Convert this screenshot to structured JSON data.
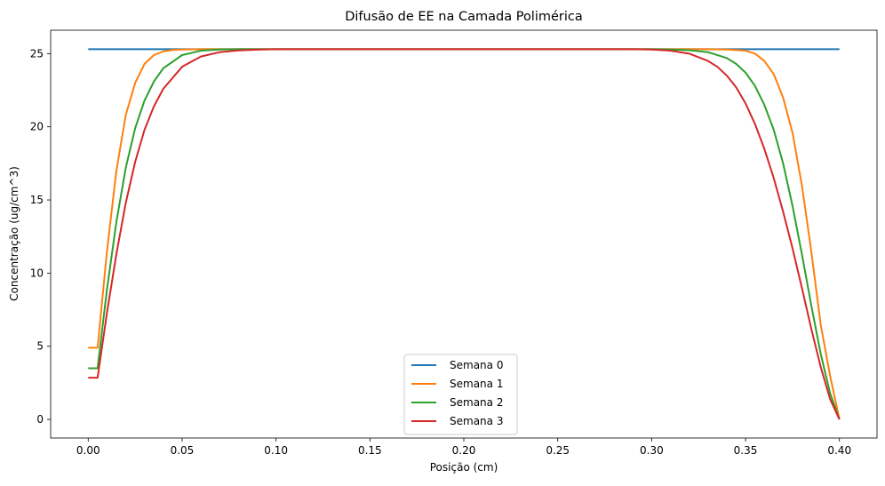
{
  "chart_data": {
    "type": "line",
    "title": "Difusão de EE na Camada Polimérica",
    "xlabel": "Posição (cm)",
    "ylabel": "Concentração (ug/cm^3)",
    "xlim": [
      -0.02,
      0.42
    ],
    "ylim": [
      -1.27,
      26.6
    ],
    "xticks": [
      0.0,
      0.05,
      0.1,
      0.15,
      0.2,
      0.25,
      0.3,
      0.35,
      0.4
    ],
    "xtick_labels": [
      "0.00",
      "0.05",
      "0.10",
      "0.15",
      "0.20",
      "0.25",
      "0.30",
      "0.35",
      "0.40"
    ],
    "yticks": [
      0,
      5,
      10,
      15,
      20,
      25
    ],
    "ytick_labels": [
      "0",
      "5",
      "10",
      "15",
      "20",
      "25"
    ],
    "grid": false,
    "legend_position": "bottom-center",
    "plateau": 25.3,
    "series": [
      {
        "name": "Semana 0",
        "color": "#1f77b4",
        "x": [
          0.0,
          0.4
        ],
        "y": [
          25.3,
          25.3
        ]
      },
      {
        "name": "Semana 1",
        "color": "#ff7f0e",
        "x": [
          0.0,
          0.004,
          0.005,
          0.01,
          0.015,
          0.02,
          0.025,
          0.03,
          0.035,
          0.04,
          0.045,
          0.05,
          0.06,
          0.07,
          0.08,
          0.1,
          0.2,
          0.3,
          0.32,
          0.33,
          0.34,
          0.35,
          0.355,
          0.36,
          0.365,
          0.37,
          0.375,
          0.38,
          0.385,
          0.39,
          0.395,
          0.4
        ],
        "y": [
          4.9,
          4.9,
          4.9,
          11.5,
          17.0,
          20.8,
          23.0,
          24.3,
          24.9,
          25.15,
          25.25,
          25.28,
          25.3,
          25.3,
          25.3,
          25.3,
          25.3,
          25.3,
          25.3,
          25.3,
          25.28,
          25.2,
          25.0,
          24.5,
          23.6,
          22.0,
          19.6,
          16.0,
          11.5,
          6.5,
          3.0,
          0.0
        ]
      },
      {
        "name": "Semana 2",
        "color": "#2ca02c",
        "x": [
          0.0,
          0.004,
          0.005,
          0.01,
          0.015,
          0.02,
          0.025,
          0.03,
          0.035,
          0.04,
          0.05,
          0.06,
          0.07,
          0.08,
          0.09,
          0.1,
          0.2,
          0.3,
          0.31,
          0.32,
          0.33,
          0.34,
          0.345,
          0.35,
          0.355,
          0.36,
          0.365,
          0.37,
          0.375,
          0.38,
          0.385,
          0.39,
          0.395,
          0.4
        ],
        "y": [
          3.5,
          3.5,
          3.5,
          8.9,
          13.5,
          17.2,
          19.9,
          21.8,
          23.1,
          24.0,
          24.9,
          25.2,
          25.28,
          25.3,
          25.3,
          25.3,
          25.3,
          25.3,
          25.28,
          25.23,
          25.1,
          24.7,
          24.3,
          23.7,
          22.8,
          21.5,
          19.8,
          17.5,
          14.6,
          11.3,
          7.8,
          4.5,
          1.8,
          0.0
        ]
      },
      {
        "name": "Semana 3",
        "color": "#d62728",
        "x": [
          0.0,
          0.004,
          0.005,
          0.01,
          0.015,
          0.02,
          0.025,
          0.03,
          0.035,
          0.04,
          0.05,
          0.06,
          0.07,
          0.08,
          0.09,
          0.1,
          0.11,
          0.2,
          0.29,
          0.3,
          0.31,
          0.32,
          0.33,
          0.335,
          0.34,
          0.345,
          0.35,
          0.355,
          0.36,
          0.365,
          0.37,
          0.375,
          0.38,
          0.385,
          0.39,
          0.395,
          0.4
        ],
        "y": [
          2.85,
          2.85,
          2.85,
          7.3,
          11.3,
          14.8,
          17.6,
          19.8,
          21.4,
          22.6,
          24.1,
          24.8,
          25.1,
          25.22,
          25.27,
          25.3,
          25.3,
          25.3,
          25.3,
          25.28,
          25.2,
          25.0,
          24.5,
          24.1,
          23.5,
          22.7,
          21.6,
          20.2,
          18.5,
          16.5,
          14.2,
          11.7,
          9.0,
          6.2,
          3.6,
          1.4,
          0.0
        ]
      }
    ]
  }
}
